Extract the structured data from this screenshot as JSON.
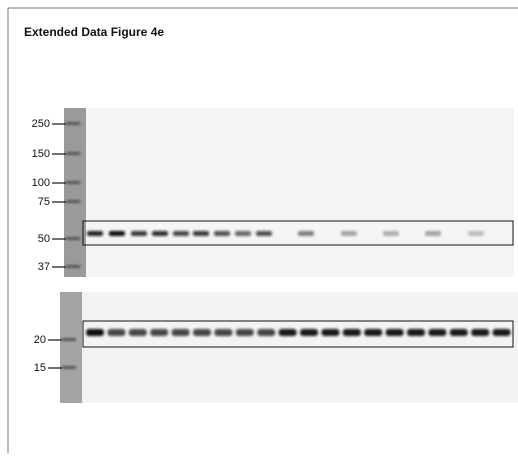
{
  "title": "Extended Data Figure 4e",
  "blots": [
    {
      "markers": [
        "250",
        "150",
        "100",
        "75",
        "50",
        "37"
      ]
    },
    {
      "markers": [
        "20",
        "15"
      ]
    }
  ]
}
